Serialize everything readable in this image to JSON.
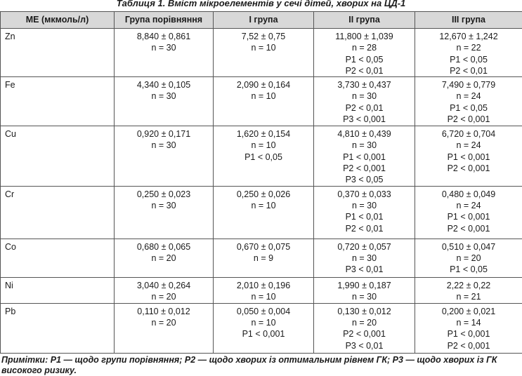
{
  "title": "Таблиця 1. Вміст мікроелементів у сечі дітей, хворих на ЦД-1",
  "table": {
    "header": [
      "МЕ (мкмоль/л)",
      "Група порівняння",
      "I група",
      "II група",
      "III група"
    ],
    "rows": [
      [
        "Zn",
        [
          "8,840 ± 0,861",
          "n = 30"
        ],
        [
          "7,52 ± 0,75",
          "n = 10"
        ],
        [
          "11,800 ± 1,039",
          "n = 28",
          "P1 < 0,05",
          "P2 < 0,01"
        ],
        [
          "12,670 ± 1,242",
          "n = 22",
          "P1 < 0,05",
          "P2 < 0,01"
        ]
      ],
      [
        "Fe",
        [
          "4,340 ± 0,105",
          "n = 30"
        ],
        [
          "2,090 ± 0,164",
          "n = 10"
        ],
        [
          "3,730 ± 0,437",
          "n = 30",
          "P2 < 0,01",
          "P3 < 0,001"
        ],
        [
          "7,490 ± 0,779",
          "n = 24",
          "P1 < 0,05",
          "P2 < 0,001"
        ]
      ],
      [
        "Cu",
        [
          "0,920 ± 0,171",
          "n = 30"
        ],
        [
          "1,620 ± 0,154",
          "n = 10",
          "P1 < 0,05"
        ],
        [
          "4,810 ± 0,439",
          "n = 30",
          "P1 < 0,001",
          "P2 < 0,001",
          "P3 < 0,05"
        ],
        [
          "6,720 ± 0,704",
          "n = 24",
          "P1 < 0,001",
          "P2 < 0,001"
        ]
      ],
      [
        "Cr",
        [
          "0,250 ± 0,023",
          "n = 30"
        ],
        [
          "0,250 ± 0,026",
          "n = 10"
        ],
        [
          "0,370 ± 0,033",
          "n = 30",
          "P1 < 0,01",
          "P2 < 0,01"
        ],
        [
          "0,480 ± 0,049",
          "n = 24",
          "P1 < 0,001",
          "P2 < 0,001"
        ]
      ],
      [
        "Co",
        [
          "0,680 ± 0,065",
          "n = 20"
        ],
        [
          "0,670 ± 0,075",
          "n = 9"
        ],
        [
          "0,720 ± 0,057",
          "n = 30",
          "P3 < 0,01"
        ],
        [
          "0,510 ± 0,047",
          "n = 20",
          "P1 < 0,05"
        ]
      ],
      [
        "Ni",
        [
          "3,040 ± 0,264",
          "n = 20"
        ],
        [
          "2,010 ± 0,196",
          "n = 10"
        ],
        [
          "1,990 ± 0,187",
          "n = 30"
        ],
        [
          "2,22 ± 0,22",
          "n = 21"
        ]
      ],
      [
        "Pb",
        [
          "0,110 ± 0,012",
          "n = 20"
        ],
        [
          "0,050 ± 0,004",
          "n = 10",
          "P1 < 0,001"
        ],
        [
          "0,130 ± 0,012",
          "n = 20",
          "P2 < 0,001",
          "P3 < 0,01"
        ],
        [
          "0,200 ± 0,021",
          "n = 14",
          "P1 < 0,001",
          "P2 < 0,001"
        ]
      ]
    ]
  },
  "note": "Примітки: Р1 — щодо групи порівняння; Р2 — щодо хворих із оптимальним рівнем ГК; Р3 — щодо хворих із ГК високого ризику."
}
